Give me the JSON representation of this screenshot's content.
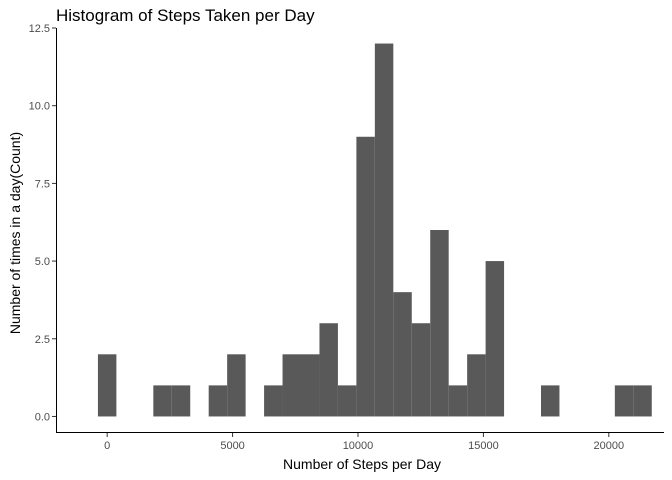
{
  "chart_data": {
    "type": "bar",
    "title": "Histogram of Steps Taken per Day",
    "xlabel": "Number of Steps per Day",
    "ylabel": "Number of times in a day(Count)",
    "xlim": [
      -2000,
      22200
    ],
    "ylim": [
      -0.5,
      12.5
    ],
    "x_ticks": [
      0,
      5000,
      10000,
      15000,
      20000
    ],
    "x_tick_labels": [
      "0",
      "5000",
      "10000",
      "15000",
      "20000"
    ],
    "y_ticks": [
      0,
      2.5,
      5,
      7.5,
      10,
      12.5
    ],
    "y_tick_labels": [
      "0.0",
      "2.5",
      "5.0",
      "7.5",
      "10.0",
      "12.5"
    ],
    "bin_width": 736,
    "bin_centers": [
      0,
      736,
      1472,
      2208,
      2944,
      3680,
      4416,
      5152,
      5888,
      6624,
      7360,
      8096,
      8832,
      9568,
      10304,
      11040,
      11776,
      12512,
      13248,
      13984,
      14720,
      15456,
      16192,
      16928,
      17664,
      18400,
      19136,
      19872,
      20608,
      21344
    ],
    "counts": [
      2,
      0,
      0,
      1,
      1,
      0,
      1,
      2,
      0,
      1,
      2,
      2,
      3,
      1,
      9,
      12,
      4,
      3,
      6,
      1,
      2,
      5,
      0,
      0,
      1,
      0,
      0,
      0,
      1,
      1
    ],
    "bar_color": "#595959",
    "grid": false,
    "legend": "none"
  }
}
